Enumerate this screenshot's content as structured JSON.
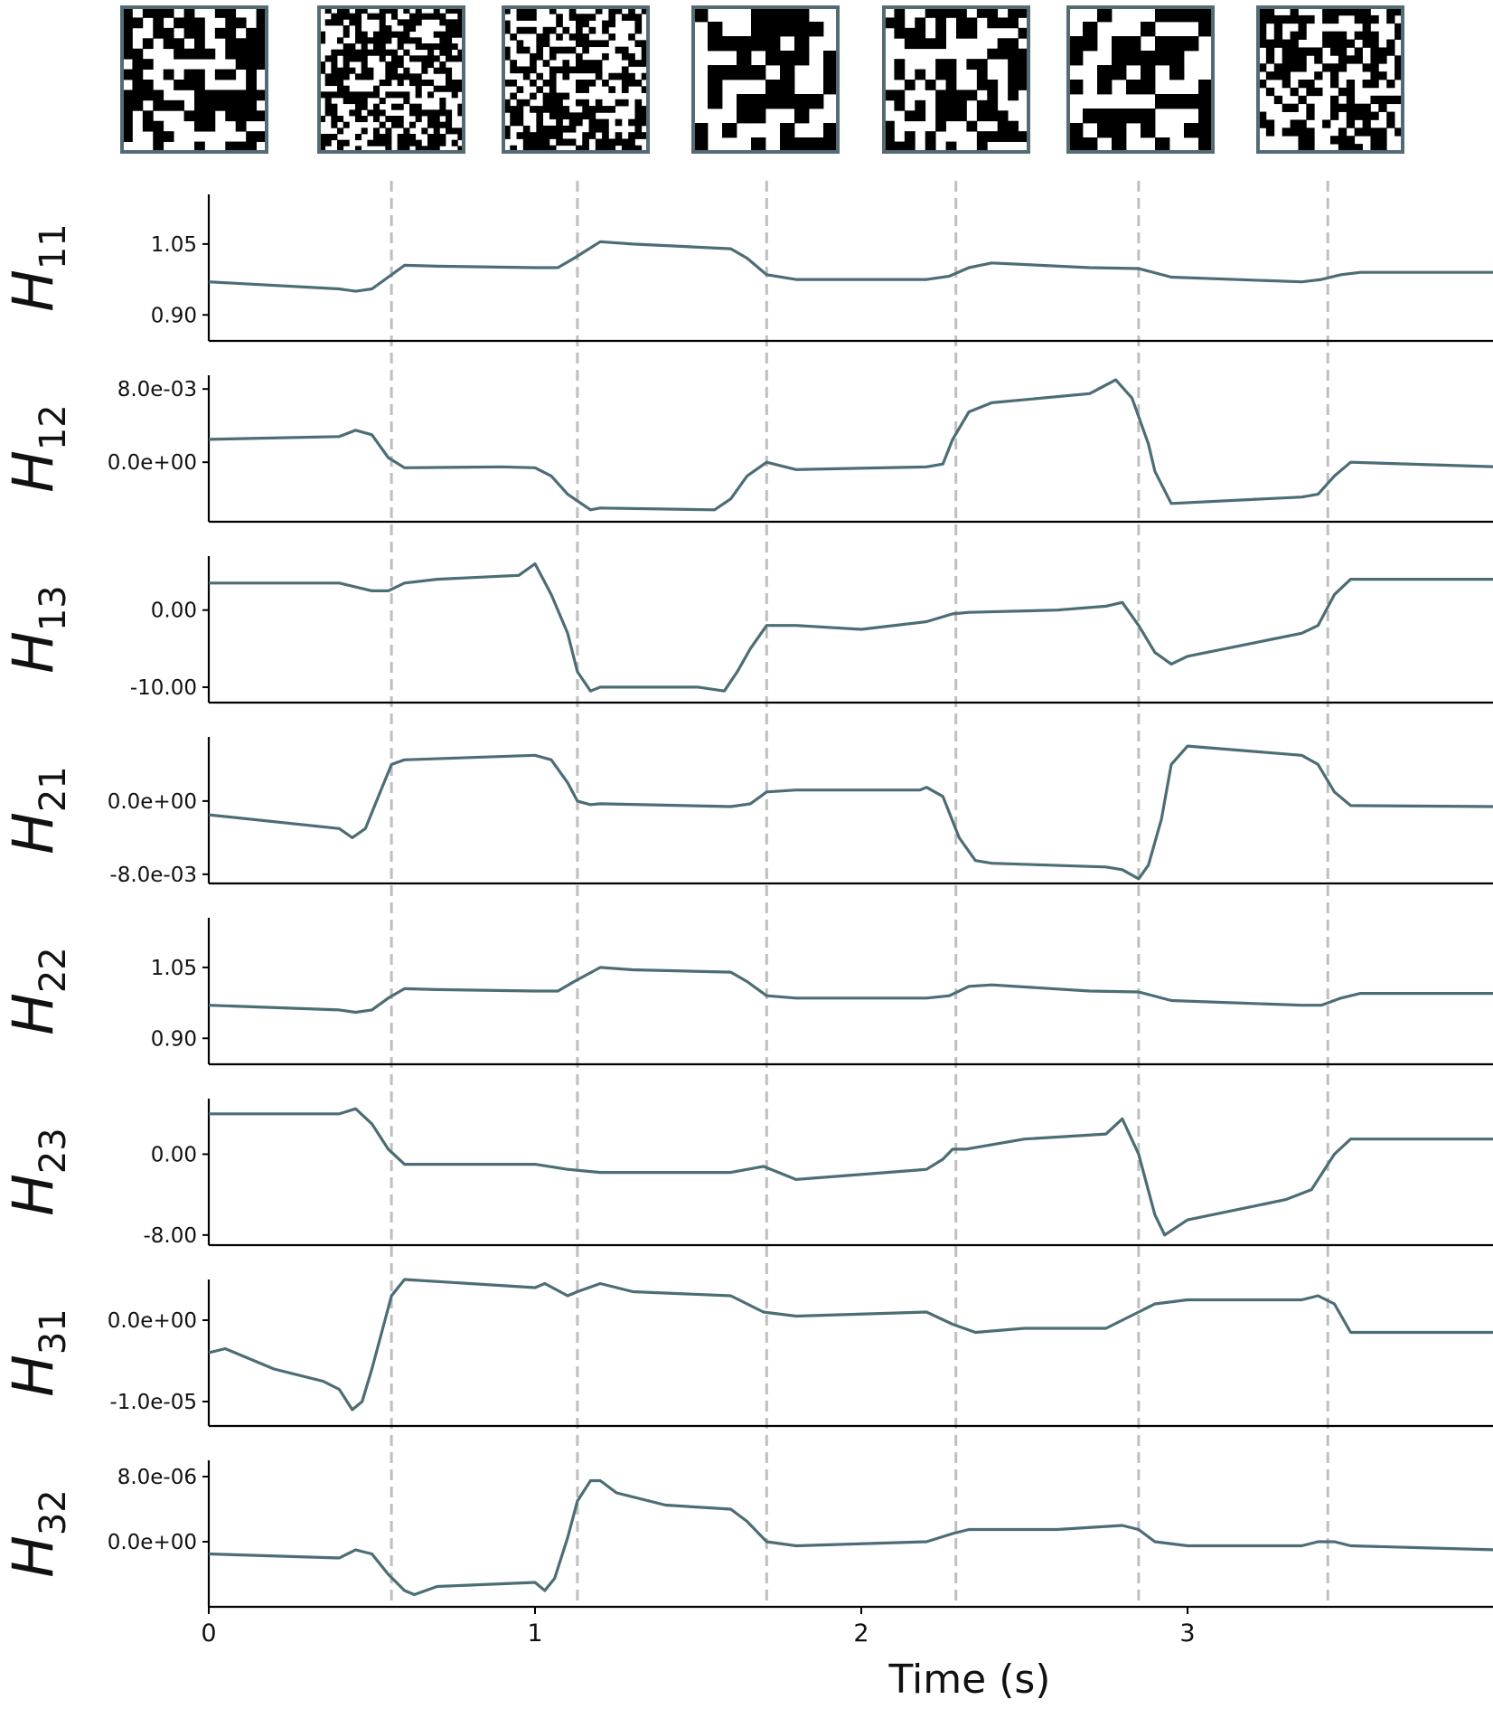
{
  "colors": {
    "series": "#4c6d76",
    "divider": "#bfbfbf",
    "axis": "#000000",
    "thumb_frame": "#556b73"
  },
  "chart_data": {
    "type": "line",
    "xlabel": "Time (s)",
    "xlim": [
      0,
      3.95
    ],
    "xticks": [
      "0",
      "1",
      "2",
      "3"
    ],
    "xtick_values": [
      0,
      1,
      2,
      3
    ],
    "vlines": [
      0.56,
      1.13,
      1.71,
      2.29,
      2.85,
      3.43
    ],
    "grid": false,
    "legend": "none",
    "panels": [
      {
        "name": "H11",
        "sym": "H",
        "sub": "11",
        "ylim": [
          0.845,
          1.155
        ],
        "yticks": [
          1.05,
          0.9
        ],
        "ytick_labels": [
          "1.05",
          "0.90"
        ],
        "x": [
          0,
          0.4,
          0.45,
          0.5,
          0.55,
          0.6,
          0.7,
          1.0,
          1.07,
          1.12,
          1.2,
          1.3,
          1.6,
          1.65,
          1.71,
          1.8,
          2.2,
          2.27,
          2.33,
          2.4,
          2.7,
          2.85,
          2.95,
          3.35,
          3.41,
          3.47,
          3.53,
          3.95
        ],
        "values": [
          0.97,
          0.955,
          0.95,
          0.955,
          0.98,
          1.005,
          1.003,
          1.0,
          1.0,
          1.02,
          1.055,
          1.05,
          1.04,
          1.02,
          0.985,
          0.975,
          0.975,
          0.982,
          1.0,
          1.01,
          1.0,
          0.998,
          0.98,
          0.97,
          0.975,
          0.985,
          0.99,
          0.99
        ]
      },
      {
        "name": "H12",
        "sym": "H",
        "sub": "12",
        "ylim": [
          -0.0065,
          0.0095
        ],
        "yticks": [
          0.008,
          0.0
        ],
        "ytick_labels": [
          "8.0e-03",
          "0.0e+00"
        ],
        "x": [
          0,
          0.4,
          0.45,
          0.5,
          0.55,
          0.6,
          0.9,
          1.0,
          1.05,
          1.1,
          1.17,
          1.2,
          1.55,
          1.6,
          1.65,
          1.71,
          1.8,
          2.2,
          2.25,
          2.28,
          2.33,
          2.4,
          2.7,
          2.78,
          2.83,
          2.88,
          2.9,
          2.95,
          3.35,
          3.4,
          3.45,
          3.5,
          3.95
        ],
        "values": [
          0.0025,
          0.0028,
          0.0035,
          0.003,
          0.0005,
          -0.0006,
          -0.0005,
          -0.0006,
          -0.0015,
          -0.0035,
          -0.0052,
          -0.005,
          -0.0052,
          -0.004,
          -0.0015,
          0.0,
          -0.0008,
          -0.0005,
          -0.0002,
          0.0025,
          0.0055,
          0.0065,
          0.0075,
          0.009,
          0.007,
          0.002,
          -0.001,
          -0.0045,
          -0.0038,
          -0.0035,
          -0.0015,
          0.0,
          -0.0005
        ]
      },
      {
        "name": "H13",
        "sym": "H",
        "sub": "13",
        "ylim": [
          -12.0,
          7.0
        ],
        "yticks": [
          0.0,
          -10.0
        ],
        "ytick_labels": [
          "0.00",
          "-10.00"
        ],
        "x": [
          0,
          0.4,
          0.5,
          0.55,
          0.6,
          0.7,
          0.95,
          1.0,
          1.05,
          1.1,
          1.13,
          1.17,
          1.2,
          1.5,
          1.58,
          1.62,
          1.66,
          1.71,
          1.8,
          2.0,
          2.2,
          2.28,
          2.33,
          2.6,
          2.75,
          2.8,
          2.85,
          2.9,
          2.95,
          3.0,
          3.35,
          3.4,
          3.45,
          3.5,
          3.95
        ],
        "values": [
          3.5,
          3.5,
          2.5,
          2.5,
          3.5,
          4.0,
          4.5,
          6.0,
          2.0,
          -3.0,
          -8.0,
          -10.5,
          -10.0,
          -10.0,
          -10.5,
          -8.0,
          -5.0,
          -2.0,
          -2.0,
          -2.5,
          -1.5,
          -0.5,
          -0.3,
          0.0,
          0.5,
          1.0,
          -2.0,
          -5.5,
          -7.0,
          -6.0,
          -3.0,
          -2.0,
          2.0,
          4.0,
          4.0
        ]
      },
      {
        "name": "H21",
        "sym": "H",
        "sub": "21",
        "ylim": [
          -0.009,
          0.007
        ],
        "yticks": [
          0.0,
          -0.008
        ],
        "ytick_labels": [
          "0.0e+00",
          "-8.0e-03"
        ],
        "x": [
          0,
          0.4,
          0.44,
          0.48,
          0.52,
          0.56,
          0.6,
          1.0,
          1.05,
          1.1,
          1.13,
          1.17,
          1.2,
          1.6,
          1.66,
          1.71,
          1.8,
          2.18,
          2.2,
          2.25,
          2.3,
          2.35,
          2.4,
          2.75,
          2.8,
          2.85,
          2.88,
          2.92,
          2.95,
          3.0,
          3.35,
          3.4,
          3.45,
          3.5,
          3.95
        ],
        "values": [
          -0.0015,
          -0.003,
          -0.004,
          -0.003,
          0.0005,
          0.004,
          0.0045,
          0.005,
          0.0045,
          0.002,
          0.0,
          -0.0004,
          -0.0003,
          -0.0006,
          -0.0003,
          0.001,
          0.0012,
          0.0012,
          0.0015,
          0.0005,
          -0.004,
          -0.0065,
          -0.0068,
          -0.0072,
          -0.0075,
          -0.0085,
          -0.007,
          -0.002,
          0.004,
          0.006,
          0.005,
          0.004,
          0.001,
          -0.0005,
          -0.0006
        ]
      },
      {
        "name": "H22",
        "sym": "H",
        "sub": "22",
        "ylim": [
          0.845,
          1.155
        ],
        "yticks": [
          1.05,
          0.9
        ],
        "ytick_labels": [
          "1.05",
          "0.90"
        ],
        "x": [
          0,
          0.4,
          0.45,
          0.5,
          0.55,
          0.6,
          0.7,
          1.0,
          1.07,
          1.12,
          1.2,
          1.3,
          1.6,
          1.65,
          1.71,
          1.8,
          2.2,
          2.27,
          2.33,
          2.4,
          2.7,
          2.85,
          2.95,
          3.35,
          3.41,
          3.47,
          3.53,
          3.95
        ],
        "values": [
          0.97,
          0.96,
          0.955,
          0.96,
          0.985,
          1.005,
          1.003,
          1.0,
          1.0,
          1.02,
          1.05,
          1.045,
          1.04,
          1.02,
          0.99,
          0.985,
          0.985,
          0.99,
          1.01,
          1.013,
          1.0,
          0.998,
          0.98,
          0.97,
          0.97,
          0.985,
          0.995,
          0.995
        ]
      },
      {
        "name": "H23",
        "sym": "H",
        "sub": "23",
        "ylim": [
          -9.0,
          5.5
        ],
        "yticks": [
          0.0,
          -8.0
        ],
        "ytick_labels": [
          "0.00",
          "-8.00"
        ],
        "x": [
          0,
          0.4,
          0.45,
          0.5,
          0.55,
          0.6,
          1.0,
          1.1,
          1.2,
          1.6,
          1.7,
          1.8,
          2.2,
          2.25,
          2.28,
          2.32,
          2.5,
          2.75,
          2.8,
          2.85,
          2.9,
          2.93,
          3.0,
          3.3,
          3.38,
          3.45,
          3.5,
          3.95
        ],
        "values": [
          4.0,
          4.0,
          4.5,
          3.0,
          0.5,
          -1.0,
          -1.0,
          -1.5,
          -1.8,
          -1.8,
          -1.2,
          -2.5,
          -1.5,
          -0.5,
          0.5,
          0.5,
          1.5,
          2.0,
          3.5,
          0.0,
          -6.0,
          -8.0,
          -6.5,
          -4.5,
          -3.5,
          0.0,
          1.5,
          1.5
        ]
      },
      {
        "name": "H31",
        "sym": "H",
        "sub": "31",
        "ylim": [
          -1.3e-05,
          5e-06
        ],
        "yticks": [
          0.0,
          -1e-05
        ],
        "ytick_labels": [
          "0.0e+00",
          "-1.0e-05"
        ],
        "x": [
          0,
          0.05,
          0.2,
          0.35,
          0.4,
          0.44,
          0.47,
          0.5,
          0.56,
          0.6,
          1.0,
          1.03,
          1.1,
          1.13,
          1.2,
          1.3,
          1.6,
          1.7,
          1.8,
          2.2,
          2.28,
          2.35,
          2.5,
          2.75,
          2.85,
          2.9,
          3.0,
          3.35,
          3.4,
          3.45,
          3.5,
          3.95
        ],
        "values": [
          -4e-06,
          -3.5e-06,
          -6e-06,
          -7.5e-06,
          -8.5e-06,
          -1.1e-05,
          -1e-05,
          -6e-06,
          3e-06,
          5e-06,
          4e-06,
          4.5e-06,
          3e-06,
          3.5e-06,
          4.5e-06,
          3.5e-06,
          3e-06,
          1e-06,
          5e-07,
          1e-06,
          -5e-07,
          -1.5e-06,
          -1e-06,
          -1e-06,
          1e-06,
          2e-06,
          2.5e-06,
          2.5e-06,
          3e-06,
          2e-06,
          -1.5e-06,
          -1.5e-06
        ]
      },
      {
        "name": "H32",
        "sym": "H",
        "sub": "32",
        "ylim": [
          -8e-06,
          1e-05
        ],
        "yticks": [
          8e-06,
          0.0
        ],
        "ytick_labels": [
          "8.0e-06",
          "0.0e+00"
        ],
        "x": [
          0,
          0.4,
          0.45,
          0.5,
          0.55,
          0.6,
          0.63,
          0.7,
          1.0,
          1.03,
          1.06,
          1.1,
          1.13,
          1.17,
          1.2,
          1.25,
          1.4,
          1.6,
          1.65,
          1.71,
          1.8,
          2.2,
          2.28,
          2.33,
          2.6,
          2.8,
          2.85,
          2.9,
          3.0,
          3.35,
          3.4,
          3.45,
          3.5,
          3.95
        ],
        "values": [
          -1.5e-06,
          -2e-06,
          -1e-06,
          -1.5e-06,
          -4e-06,
          -6e-06,
          -6.5e-06,
          -5.5e-06,
          -5e-06,
          -6e-06,
          -4.5e-06,
          5e-07,
          5e-06,
          7.5e-06,
          7.5e-06,
          6e-06,
          4.5e-06,
          4e-06,
          2.5e-06,
          0.0,
          -5e-07,
          0.0,
          1e-06,
          1.5e-06,
          1.5e-06,
          2e-06,
          1.5e-06,
          0.0,
          -5e-07,
          -5e-07,
          0.0,
          0.0,
          -5e-07,
          -1e-06
        ]
      }
    ]
  }
}
